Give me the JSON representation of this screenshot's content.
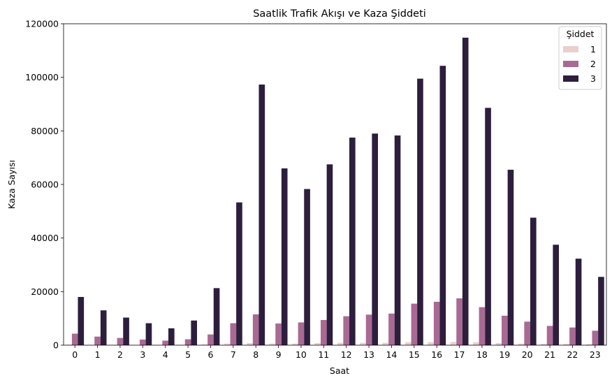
{
  "chart_data": {
    "type": "bar",
    "title": "Saatlik Trafik Akışı ve Kaza Şiddeti",
    "xlabel": "Saat",
    "ylabel": "Kaza Sayısı",
    "categories": [
      "0",
      "1",
      "2",
      "3",
      "4",
      "5",
      "6",
      "7",
      "8",
      "9",
      "10",
      "11",
      "12",
      "13",
      "14",
      "15",
      "16",
      "17",
      "18",
      "19",
      "20",
      "21",
      "22",
      "23"
    ],
    "ylim": [
      0,
      120000
    ],
    "yticks": [
      "0",
      "20000",
      "40000",
      "60000",
      "80000",
      "100000",
      "120000"
    ],
    "ytick_values": [
      0,
      20000,
      40000,
      60000,
      80000,
      100000,
      120000
    ],
    "grid": false,
    "legend": {
      "title": "Şiddet",
      "placement": "top-right"
    },
    "series": [
      {
        "name": "1",
        "color": "#e9d0cc",
        "values": [
          200,
          150,
          120,
          100,
          100,
          150,
          300,
          600,
          800,
          600,
          600,
          800,
          900,
          900,
          900,
          1100,
          1100,
          1200,
          1100,
          800,
          600,
          500,
          500,
          400
        ]
      },
      {
        "name": "2",
        "color": "#a86a93",
        "values": [
          4300,
          3200,
          2700,
          2100,
          1700,
          2200,
          4000,
          8200,
          11500,
          8100,
          8500,
          9400,
          10800,
          11400,
          11800,
          15500,
          16200,
          17500,
          14200,
          11000,
          8800,
          7200,
          6600,
          5400
        ]
      },
      {
        "name": "3",
        "color": "#2d1e3e",
        "values": [
          18000,
          13000,
          10300,
          8200,
          6300,
          9200,
          21300,
          53300,
          97300,
          66000,
          58300,
          67500,
          77500,
          79000,
          78300,
          99500,
          104300,
          114800,
          88600,
          65500,
          47600,
          37500,
          32300,
          25500
        ]
      }
    ]
  }
}
